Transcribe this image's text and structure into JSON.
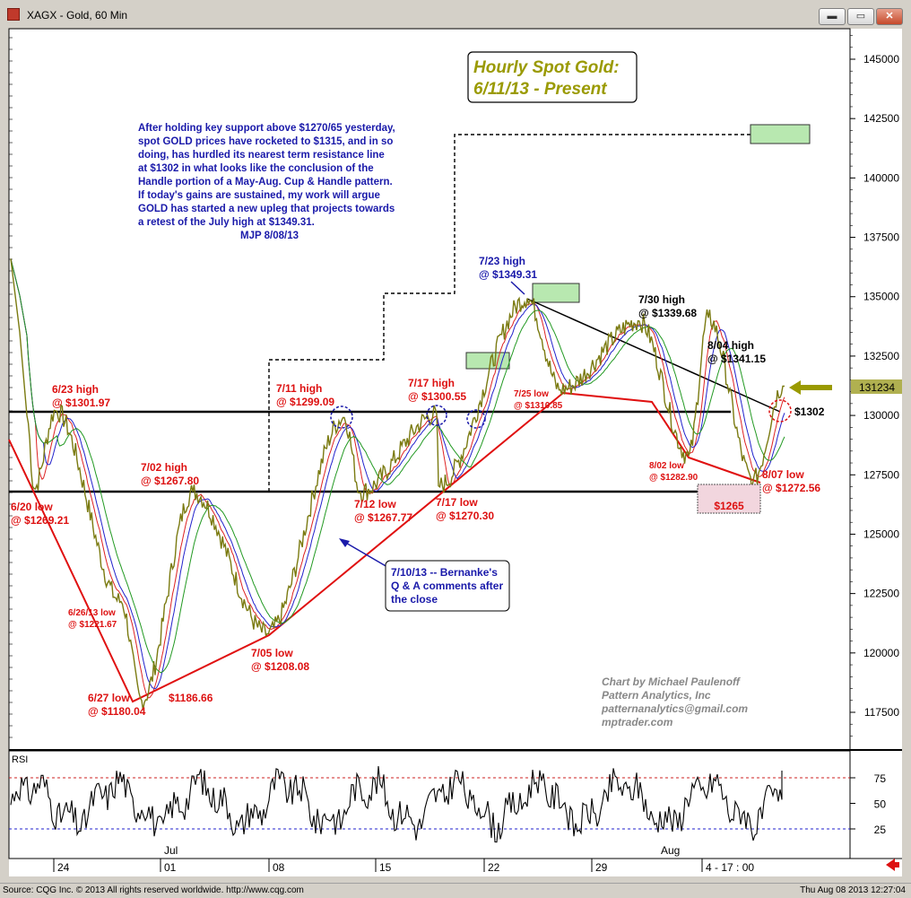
{
  "window": {
    "title": "XAGX - Gold, 60 Min",
    "buttons": {
      "minimize": "▬",
      "maximize": "▭",
      "close": "✕"
    }
  },
  "colors": {
    "price": "#7a7a10",
    "annotation_red": "#dd1111",
    "annotation_blue": "#1a1aaa",
    "annotation_black": "#000000",
    "title_olive": "#9a9a00",
    "ma_red": "#dd2222",
    "ma_blue": "#2222cc",
    "ma_green": "#229922",
    "rsi_line": "#000000",
    "box_green": "#b8e8b0"
  },
  "chart_data": {
    "type": "line",
    "title": "Hourly Spot Gold: 6/11/13 - Present",
    "y_axis": {
      "range": [
        115500,
        146800
      ],
      "ticks": [
        "145000",
        "142500",
        "140000",
        "137500",
        "135000",
        "132500",
        "130000",
        "127500",
        "125000",
        "122500",
        "120000",
        "117500"
      ]
    },
    "x_axis": {
      "date_ticks": [
        "24",
        "01",
        "08",
        "15",
        "22",
        "29",
        "4 - 17 : 00"
      ],
      "month_labels": [
        "Jul",
        "Aug"
      ]
    },
    "last_price": "131234",
    "current_marker": "$1302",
    "series_name": "XAGX - Gold, 60 Min",
    "key_points": [
      {
        "label": "6/20 low",
        "value": 126921
      },
      {
        "label": "6/23 high",
        "value": 130197
      },
      {
        "label": "6/26/13 low",
        "value": 122167
      },
      {
        "label": "6/27 low",
        "value": 118004
      },
      {
        "label": "7/02 high",
        "value": 126780
      },
      {
        "label": "7/05 low",
        "value": 120808
      },
      {
        "label": "7/11 high",
        "value": 129909
      },
      {
        "label": "7/12 low",
        "value": 126777
      },
      {
        "label": "7/17 high",
        "value": 130055
      },
      {
        "label": "7/17 low",
        "value": 127030
      },
      {
        "label": "7/23 high",
        "value": 134931
      },
      {
        "label": "7/25 low",
        "value": 131085
      },
      {
        "label": "7/30 high",
        "value": 133968
      },
      {
        "label": "8/02 low",
        "value": 128290
      },
      {
        "label": "8/04 high",
        "value": 134115
      },
      {
        "label": "8/07 low",
        "value": 127256
      },
      {
        "label": "last",
        "value": 131234
      }
    ],
    "rsi": {
      "label": "RSI",
      "levels": [
        "75",
        "50",
        "25"
      ],
      "last_value": 82
    }
  },
  "texts": {
    "chart_title_line1": "Hourly Spot Gold:",
    "chart_title_line2": "6/11/13 - Present",
    "commentary": [
      "After holding key support above $1270/65 yesterday,",
      "spot GOLD prices have rocketed to $1315, and in so",
      "doing, has hurdled its nearest term resistance line",
      "at $1302 in what looks like the conclusion of the",
      "Handle portion of a May-Aug. Cup & Handle pattern.",
      "If today's gains are sustained, my work will argue",
      "GOLD has started a new upleg that projects towards",
      "a retest of the July high at $1349.31.",
      "MJP  8/08/13"
    ],
    "credit": [
      "Chart by Michael Paulenoff",
      "Pattern Analytics, Inc",
      "patternanalytics@gmail.com",
      "mptrader.com"
    ],
    "bernanke_note": [
      "7/10/13 -- Bernanke's",
      "Q & A comments after",
      "the close"
    ],
    "box_1265": "$1265",
    "labels": {
      "l_620": [
        "6/20 low",
        "@ $1269.21"
      ],
      "l_623": [
        "6/23 high",
        "@ $1301.97"
      ],
      "l_626": [
        "6/26/13 low",
        "@ $1221.67"
      ],
      "l_627": [
        "6/27 low",
        "@ $1180.04"
      ],
      "l_1186": [
        "$1186.66"
      ],
      "l_702": [
        "7/02 high",
        "@ $1267.80"
      ],
      "l_705": [
        "7/05 low",
        "@ $1208.08"
      ],
      "l_711": [
        "7/11 high",
        "@ $1299.09"
      ],
      "l_712": [
        "7/12 low",
        "@ $1267.77"
      ],
      "l_717h": [
        "7/17 high",
        "@ $1300.55"
      ],
      "l_717l": [
        "7/17 low",
        "@ $1270.30"
      ],
      "l_723": [
        "7/23 high",
        "@ $1349.31"
      ],
      "l_725": [
        "7/25 low",
        "@ $1310.85"
      ],
      "l_730": [
        "7/30 high",
        "@ $1339.68"
      ],
      "l_804": [
        "8/04 high",
        "@ $1341.15"
      ],
      "l_802": [
        "8/02 low",
        "@ $1282.90"
      ],
      "l_807": [
        "8/07 low",
        "@ $1272.56"
      ]
    }
  },
  "footer": {
    "left": "Source: CQG Inc. © 2013 All rights reserved worldwide. http://www.cqg.com",
    "right": "Thu Aug 08 2013 12:27:04"
  }
}
